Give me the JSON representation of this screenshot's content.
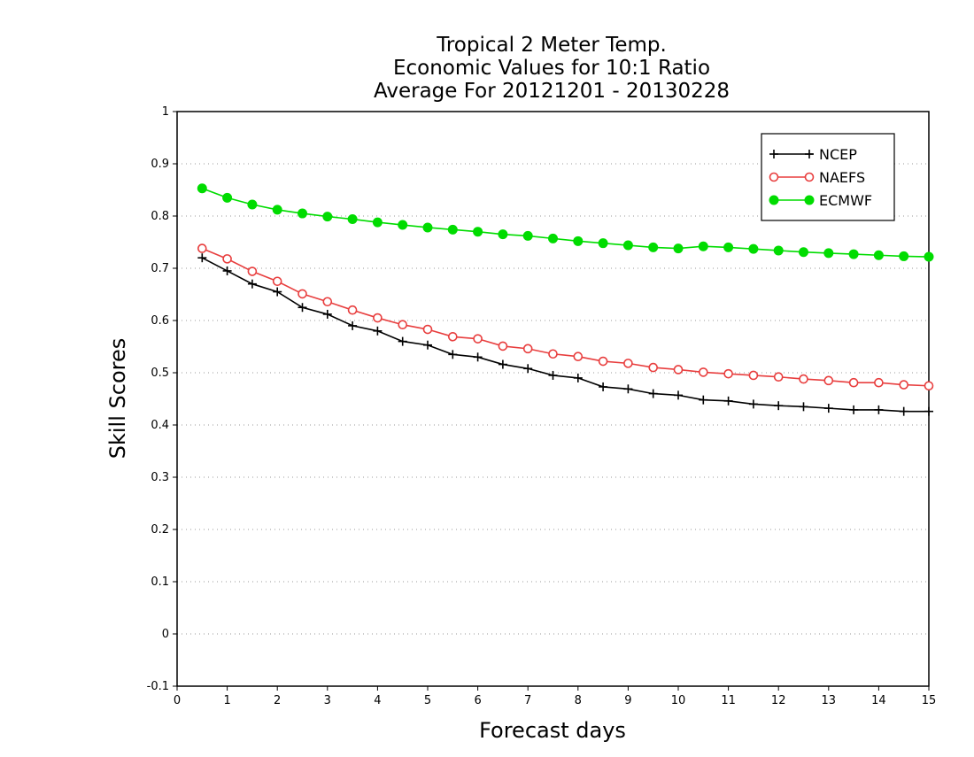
{
  "chart_data": {
    "type": "line",
    "title_lines": [
      "Tropical 2 Meter Temp.",
      "Economic Values for 10:1 Ratio",
      "Average For 20121201 - 20130228"
    ],
    "xlabel": "Forecast days",
    "ylabel": "Skill Scores",
    "xlim": [
      0,
      15
    ],
    "ylim": [
      -0.1,
      1
    ],
    "xticks": [
      "0",
      "1",
      "2",
      "3",
      "4",
      "5",
      "6",
      "7",
      "8",
      "9",
      "10",
      "11",
      "12",
      "13",
      "14",
      "15"
    ],
    "yticks": [
      "-0.1",
      "0",
      "0.1",
      "0.2",
      "0.3",
      "0.4",
      "0.5",
      "0.6",
      "0.7",
      "0.8",
      "0.9",
      "1"
    ],
    "grid": "horizontal dotted",
    "legend_position": "top-right",
    "x": [
      0.5,
      1,
      1.5,
      2,
      2.5,
      3,
      3.5,
      4,
      4.5,
      5,
      5.5,
      6,
      6.5,
      7,
      7.5,
      8,
      8.5,
      9,
      9.5,
      10,
      10.5,
      11,
      11.5,
      12,
      12.5,
      13,
      13.5,
      14,
      14.5,
      15
    ],
    "series": [
      {
        "name": "NCEP",
        "color": "#000000",
        "marker": "plus",
        "values": [
          0.72,
          0.695,
          0.67,
          0.655,
          0.625,
          0.612,
          0.59,
          0.58,
          0.56,
          0.553,
          0.535,
          0.53,
          0.516,
          0.508,
          0.495,
          0.49,
          0.473,
          0.469,
          0.46,
          0.457,
          0.448,
          0.446,
          0.44,
          0.437,
          0.435,
          0.432,
          0.429,
          0.429,
          0.426,
          0.426
        ]
      },
      {
        "name": "NAEFS",
        "color": "#e83e3e",
        "marker": "open-circle",
        "values": [
          0.738,
          0.718,
          0.694,
          0.675,
          0.651,
          0.636,
          0.62,
          0.605,
          0.592,
          0.583,
          0.569,
          0.565,
          0.551,
          0.546,
          0.536,
          0.531,
          0.522,
          0.518,
          0.51,
          0.506,
          0.501,
          0.498,
          0.495,
          0.492,
          0.488,
          0.485,
          0.481,
          0.481,
          0.477,
          0.475
        ]
      },
      {
        "name": "ECMWF",
        "color": "#00dc00",
        "marker": "filled-circle",
        "values": [
          0.853,
          0.835,
          0.822,
          0.812,
          0.805,
          0.799,
          0.794,
          0.788,
          0.783,
          0.778,
          0.774,
          0.77,
          0.765,
          0.762,
          0.757,
          0.752,
          0.748,
          0.744,
          0.74,
          0.738,
          0.742,
          0.74,
          0.737,
          0.734,
          0.731,
          0.729,
          0.727,
          0.725,
          0.723,
          0.722
        ]
      }
    ]
  }
}
